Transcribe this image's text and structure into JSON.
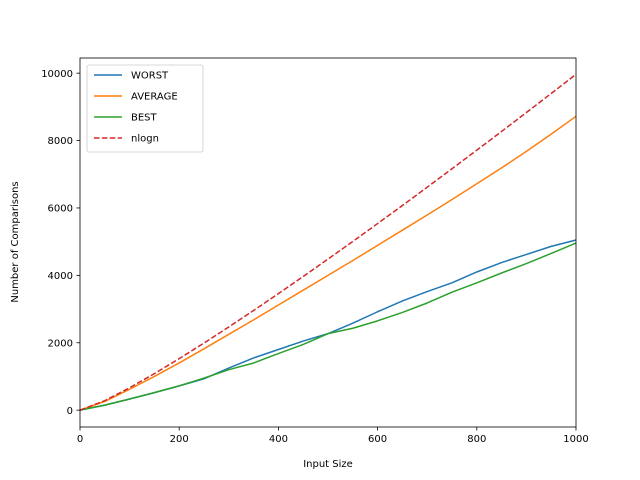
{
  "chart_data": {
    "type": "line",
    "title": "",
    "xlabel": "Input Size",
    "ylabel": "Number of Comparisons",
    "xlim": [
      0,
      1000
    ],
    "ylim": [
      -500,
      10450
    ],
    "xticks": [
      0,
      200,
      400,
      600,
      800,
      1000
    ],
    "yticks": [
      0,
      2000,
      4000,
      6000,
      8000,
      10000
    ],
    "grid": false,
    "legend_position": "top-left",
    "series": [
      {
        "name": "WORST",
        "color": "#1f77b4",
        "style": "solid",
        "x": [
          0,
          50,
          100,
          150,
          200,
          250,
          300,
          350,
          400,
          450,
          500,
          550,
          600,
          650,
          700,
          750,
          800,
          850,
          900,
          950,
          1000
        ],
        "y": [
          0,
          150,
          330,
          520,
          720,
          930,
          1250,
          1550,
          1800,
          2050,
          2270,
          2580,
          2920,
          3240,
          3520,
          3780,
          4100,
          4380,
          4620,
          4860,
          5050
        ]
      },
      {
        "name": "AVERAGE",
        "color": "#ff7f0e",
        "style": "solid",
        "x": [
          0,
          50,
          100,
          150,
          200,
          250,
          300,
          350,
          400,
          450,
          500,
          550,
          600,
          650,
          700,
          750,
          800,
          850,
          900,
          950,
          1000
        ],
        "y": [
          0,
          260,
          620,
          1000,
          1400,
          1820,
          2250,
          2680,
          3120,
          3560,
          4000,
          4440,
          4890,
          5340,
          5790,
          6250,
          6720,
          7190,
          7680,
          8190,
          8720
        ]
      },
      {
        "name": "BEST",
        "color": "#2ca02c",
        "style": "solid",
        "x": [
          0,
          50,
          100,
          150,
          200,
          250,
          300,
          350,
          400,
          450,
          500,
          550,
          600,
          650,
          700,
          750,
          800,
          850,
          900,
          950,
          1000
        ],
        "y": [
          0,
          150,
          330,
          520,
          720,
          950,
          1200,
          1400,
          1680,
          1950,
          2270,
          2430,
          2650,
          2900,
          3180,
          3500,
          3780,
          4070,
          4350,
          4650,
          4960
        ]
      },
      {
        "name": "nlogn",
        "color": "#d62728",
        "style": "dashed",
        "x": [
          0,
          50,
          100,
          150,
          200,
          250,
          300,
          350,
          400,
          450,
          500,
          550,
          600,
          650,
          700,
          750,
          800,
          850,
          900,
          950,
          1000
        ],
        "y": [
          0,
          282,
          664,
          1084,
          1529,
          1991,
          2469,
          2958,
          3458,
          3966,
          4483,
          5006,
          5537,
          6073,
          6616,
          7164,
          7715,
          8271,
          8832,
          9397,
          9966
        ]
      }
    ]
  }
}
